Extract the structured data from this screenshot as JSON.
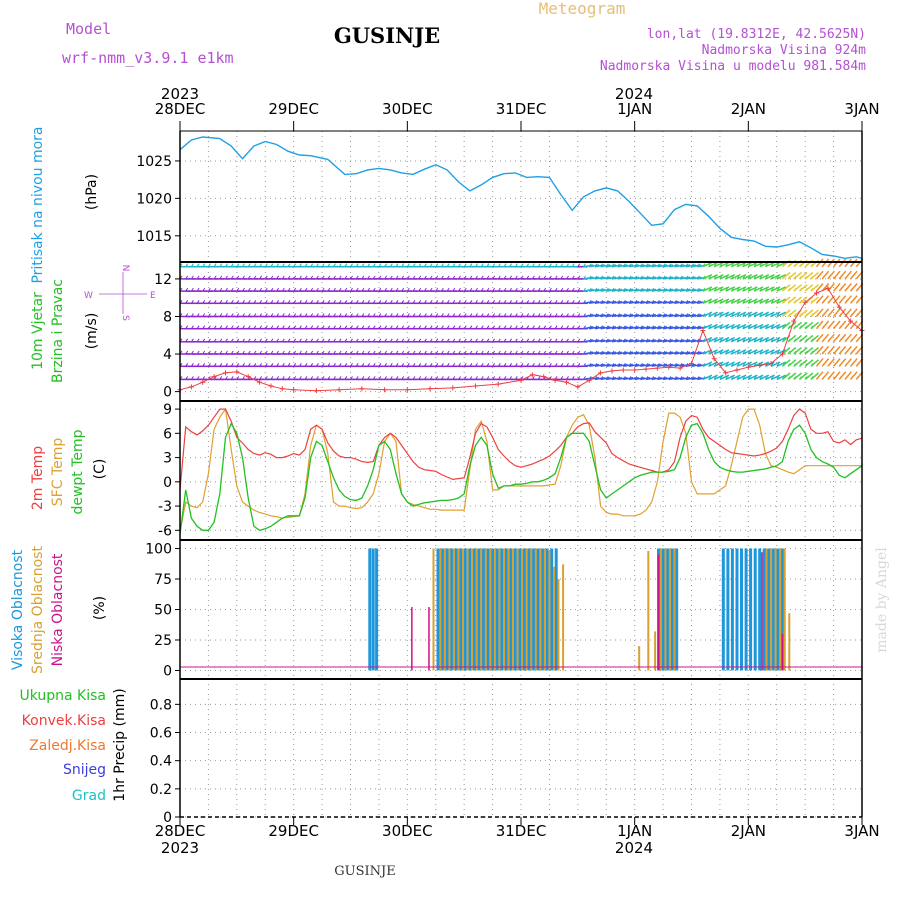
{
  "header": {
    "model_label": "Model",
    "model_name": "wrf-nmm_v3.9.1  e1km",
    "title": "GUSINJE",
    "meteogram": "Meteogram",
    "lonlat": "lon,lat (19.8312E, 42.5625N)",
    "altitude": "Nadmorska Visina 924m",
    "model_altitude": "Nadmorska Visina u modelu 981.584m",
    "footer_title": "GUSINJE",
    "watermark": "made by Angel"
  },
  "colors": {
    "pressure": "#1ea0e6",
    "temp2m": "#ee4040",
    "sfc_temp": "#e0a030",
    "dewpoint": "#22c022",
    "high_cloud": "#1e96dc",
    "mid_cloud": "#d8a030",
    "low_cloud": "#c8148c",
    "header_purple": "#b450d2",
    "meteogram_gold": "#e6be78"
  },
  "time_axis": {
    "top_year_left": "2023",
    "top_year_mid": "2024",
    "bottom_year_left": "2023",
    "bottom_year_mid": "2024",
    "ticks": [
      "28DEC",
      "29DEC",
      "30DEC",
      "31DEC",
      "1JAN",
      "2JAN",
      "3JAN"
    ]
  },
  "chart_data": [
    {
      "type": "line",
      "panel": "pressure",
      "ylabel_left": "Pritisak na nivou mora",
      "ylabel_unit": "(hPa)",
      "yticks": [
        "1015",
        "1020",
        "1025"
      ],
      "ylim": [
        1011.5,
        1029.0
      ],
      "x_days": [
        0,
        0.1,
        0.2,
        0.35,
        0.45,
        0.55,
        0.65,
        0.75,
        0.85,
        0.95,
        1.05,
        1.15,
        1.3,
        1.45,
        1.55,
        1.65,
        1.75,
        1.85,
        1.95,
        2.05,
        2.15,
        2.25,
        2.35,
        2.45,
        2.55,
        2.65,
        2.75,
        2.85,
        2.95,
        3.05,
        3.15,
        3.25,
        3.35,
        3.45,
        3.55,
        3.65,
        3.75,
        3.85,
        3.95,
        4.05,
        4.15,
        4.25,
        4.35,
        4.45,
        4.55,
        4.65,
        4.75,
        4.85,
        4.95,
        5.05,
        5.15,
        5.25,
        5.35,
        5.45,
        5.55,
        5.65,
        5.75,
        5.85,
        5.95,
        6.0
      ],
      "values": [
        1026.5,
        1027.8,
        1028.2,
        1028.0,
        1027.0,
        1025.3,
        1027.0,
        1027.6,
        1027.2,
        1026.3,
        1025.8,
        1025.7,
        1025.2,
        1023.2,
        1023.3,
        1023.8,
        1024.0,
        1023.8,
        1023.4,
        1023.2,
        1023.9,
        1024.5,
        1023.8,
        1022.2,
        1021.0,
        1021.8,
        1022.8,
        1023.3,
        1023.4,
        1022.8,
        1022.9,
        1022.8,
        1020.5,
        1018.4,
        1020.2,
        1021.0,
        1021.4,
        1021.0,
        1019.6,
        1018.0,
        1016.4,
        1016.6,
        1018.5,
        1019.2,
        1019.0,
        1017.6,
        1016.0,
        1014.8,
        1014.5,
        1014.3,
        1013.6,
        1013.5,
        1013.8,
        1014.2,
        1013.4,
        1012.5,
        1012.3,
        1012.0,
        1012.2,
        1012.0
      ]
    },
    {
      "type": "line",
      "panel": "wind",
      "ylabel_left": [
        "10m Vjetar",
        "Brzina i Pravac"
      ],
      "ylabel_unit": "(m/s)",
      "compass": {
        "n": "N",
        "w": "W",
        "e": "E",
        "s": "S"
      },
      "yticks": [
        "0",
        "4",
        "8",
        "12"
      ],
      "ylim": [
        -1.0,
        13.8
      ],
      "series": [
        {
          "name": "wind_speed",
          "x_days": [
            0,
            0.1,
            0.2,
            0.3,
            0.4,
            0.5,
            0.6,
            0.7,
            0.8,
            0.9,
            1.0,
            1.2,
            1.4,
            1.6,
            1.8,
            2.0,
            2.2,
            2.4,
            2.6,
            2.8,
            3.0,
            3.1,
            3.2,
            3.3,
            3.4,
            3.5,
            3.6,
            3.7,
            3.8,
            3.9,
            4.0,
            4.1,
            4.2,
            4.3,
            4.4,
            4.5,
            4.6,
            4.7,
            4.8,
            4.9,
            5.0,
            5.1,
            5.2,
            5.3,
            5.4,
            5.5,
            5.6,
            5.7,
            5.8,
            5.9,
            6.0
          ],
          "values": [
            0.2,
            0.5,
            1.0,
            1.6,
            2.0,
            2.1,
            1.6,
            1.0,
            0.6,
            0.3,
            0.2,
            0.1,
            0.2,
            0.3,
            0.2,
            0.2,
            0.3,
            0.4,
            0.6,
            0.8,
            1.2,
            1.8,
            1.6,
            1.2,
            1.0,
            0.5,
            1.2,
            2.0,
            2.2,
            2.3,
            2.3,
            2.4,
            2.5,
            2.6,
            2.5,
            3.0,
            6.5,
            3.5,
            2.0,
            2.3,
            2.6,
            2.8,
            3.0,
            4.0,
            7.5,
            9.5,
            10.5,
            11.0,
            9.0,
            7.5,
            6.5
          ]
        }
      ]
    },
    {
      "type": "line",
      "panel": "temperature",
      "ylabel_left": [
        "2m Temp",
        "SFC Temp",
        "dewpt Temp"
      ],
      "ylabel_unit": "(C)",
      "yticks": [
        "-6",
        "-3",
        "0",
        "3",
        "6",
        "9"
      ],
      "ylim": [
        -7.2,
        10.0
      ],
      "x_days": [
        0,
        0.05,
        0.1,
        0.15,
        0.2,
        0.25,
        0.3,
        0.35,
        0.4,
        0.45,
        0.5,
        0.55,
        0.6,
        0.65,
        0.7,
        0.75,
        0.8,
        0.85,
        0.9,
        0.95,
        1.0,
        1.05,
        1.1,
        1.15,
        1.2,
        1.25,
        1.3,
        1.35,
        1.4,
        1.45,
        1.5,
        1.55,
        1.6,
        1.65,
        1.7,
        1.75,
        1.8,
        1.85,
        1.9,
        1.95,
        2.0,
        2.05,
        2.1,
        2.15,
        2.2,
        2.25,
        2.3,
        2.35,
        2.4,
        2.45,
        2.5,
        2.55,
        2.6,
        2.65,
        2.7,
        2.75,
        2.8,
        2.85,
        2.9,
        2.95,
        3.0,
        3.05,
        3.1,
        3.15,
        3.2,
        3.25,
        3.3,
        3.35,
        3.4,
        3.45,
        3.5,
        3.55,
        3.6,
        3.65,
        3.7,
        3.75,
        3.8,
        3.85,
        3.9,
        3.95,
        4.0,
        4.05,
        4.1,
        4.15,
        4.2,
        4.25,
        4.3,
        4.35,
        4.4,
        4.45,
        4.5,
        4.55,
        4.6,
        4.65,
        4.7,
        4.75,
        4.8,
        4.85,
        4.9,
        4.95,
        5.0,
        5.05,
        5.1,
        5.15,
        5.2,
        5.25,
        5.3,
        5.35,
        5.4,
        5.45,
        5.5,
        5.55,
        5.6,
        5.65,
        5.7,
        5.75,
        5.8,
        5.85,
        5.9,
        5.95,
        6.0
      ],
      "series": [
        {
          "name": "2m Temp",
          "values": [
            -1.0,
            6.8,
            6.2,
            5.8,
            6.3,
            7.0,
            8.0,
            9.0,
            9.0,
            7.5,
            5.5,
            4.8,
            4.0,
            3.5,
            3.3,
            3.6,
            3.4,
            3.0,
            3.0,
            3.2,
            3.5,
            3.3,
            4.0,
            6.5,
            7.0,
            6.5,
            4.8,
            3.8,
            3.2,
            3.0,
            3.0,
            2.8,
            2.5,
            2.4,
            2.5,
            4.5,
            5.5,
            6.0,
            5.5,
            4.5,
            3.5,
            2.5,
            1.8,
            1.5,
            1.4,
            1.3,
            0.9,
            0.6,
            0.3,
            0.4,
            0.5,
            3.0,
            6.0,
            7.2,
            6.8,
            5.5,
            4.0,
            3.2,
            2.5,
            2.0,
            1.8,
            2.0,
            2.2,
            2.5,
            2.8,
            3.2,
            3.8,
            4.5,
            5.5,
            6.0,
            6.8,
            7.2,
            7.3,
            6.2,
            5.5,
            4.8,
            3.5,
            3.0,
            2.6,
            2.2,
            2.0,
            1.8,
            1.6,
            1.4,
            1.2,
            1.2,
            1.5,
            2.5,
            5.5,
            7.5,
            8.2,
            8.0,
            6.5,
            5.5,
            5.0,
            4.5,
            4.0,
            3.6,
            3.5,
            3.4,
            3.3,
            3.2,
            3.3,
            3.5,
            3.8,
            4.2,
            5.0,
            6.5,
            8.2,
            9.0,
            8.5,
            6.5,
            6.0,
            6.0,
            6.2,
            5.0,
            4.8,
            5.2,
            4.6,
            5.2,
            5.4
          ]
        },
        {
          "name": "SFC Temp",
          "values": [
            -6.2,
            -2.5,
            -3.0,
            -3.2,
            -2.5,
            1.0,
            6.5,
            8.0,
            9.0,
            4.0,
            -0.5,
            -2.5,
            -3.0,
            -3.5,
            -3.8,
            -4.0,
            -4.2,
            -4.3,
            -4.5,
            -4.4,
            -4.3,
            -4.2,
            -1.5,
            4.5,
            7.0,
            6.5,
            3.5,
            -2.5,
            -3.0,
            -3.0,
            -3.2,
            -3.3,
            -3.2,
            -2.5,
            -1.5,
            1.0,
            5.0,
            6.0,
            5.0,
            -1.5,
            -2.5,
            -2.8,
            -3.0,
            -3.2,
            -3.4,
            -3.4,
            -3.5,
            -3.5,
            -3.5,
            -3.5,
            -3.5,
            1.5,
            6.5,
            7.5,
            5.0,
            -1.0,
            -1.0,
            -0.5,
            -0.5,
            -0.5,
            -0.5,
            -0.5,
            -0.5,
            -0.5,
            -0.5,
            -0.4,
            -0.3,
            2.0,
            5.5,
            7.0,
            8.0,
            8.3,
            7.0,
            3.0,
            -3.0,
            -3.8,
            -4.0,
            -4.0,
            -4.2,
            -4.2,
            -4.2,
            -4.0,
            -3.5,
            -2.5,
            0.0,
            5.0,
            8.5,
            8.5,
            8.0,
            6.0,
            0.0,
            -1.5,
            -1.5,
            -1.5,
            -1.5,
            -1.0,
            -0.5,
            2.0,
            5.0,
            8.0,
            9.0,
            9.0,
            7.0,
            3.5,
            2.0,
            1.8,
            1.5,
            1.2,
            1.0,
            1.5,
            2.0,
            2.0,
            2.0,
            2.0,
            2.0,
            2.0,
            2.0,
            2.0,
            2.0,
            2.0,
            2.0
          ]
        },
        {
          "name": "dewpt Temp",
          "values": [
            -6.5,
            -1.0,
            -4.5,
            -5.5,
            -6.0,
            -6.0,
            -5.0,
            -1.5,
            5.5,
            7.2,
            6.0,
            3.0,
            -2.0,
            -5.5,
            -6.0,
            -5.8,
            -5.5,
            -5.0,
            -4.5,
            -4.2,
            -4.2,
            -4.2,
            -2.0,
            3.0,
            5.0,
            4.5,
            2.5,
            0.5,
            -1.0,
            -1.8,
            -2.2,
            -2.3,
            -2.0,
            -0.5,
            1.5,
            4.5,
            5.0,
            4.0,
            1.0,
            -1.5,
            -2.5,
            -3.0,
            -2.8,
            -2.6,
            -2.5,
            -2.4,
            -2.3,
            -2.3,
            -2.2,
            -2.0,
            -1.5,
            2.0,
            4.5,
            5.5,
            4.5,
            1.0,
            -0.8,
            -0.5,
            -0.5,
            -0.3,
            -0.3,
            -0.2,
            0.0,
            0.0,
            0.2,
            0.5,
            1.0,
            3.0,
            5.5,
            6.0,
            6.0,
            6.0,
            5.0,
            2.0,
            -1.0,
            -2.0,
            -1.5,
            -1.0,
            -0.5,
            0.0,
            0.5,
            0.8,
            1.0,
            1.2,
            1.2,
            1.2,
            1.3,
            1.5,
            3.0,
            5.5,
            7.0,
            7.2,
            6.0,
            4.0,
            2.5,
            1.8,
            1.5,
            1.3,
            1.2,
            1.2,
            1.3,
            1.4,
            1.5,
            1.6,
            1.8,
            2.0,
            2.5,
            5.0,
            6.5,
            7.0,
            6.0,
            4.0,
            3.0,
            2.5,
            2.2,
            1.8,
            0.8,
            0.5,
            1.0,
            1.5,
            2.0
          ]
        }
      ]
    },
    {
      "type": "bar",
      "panel": "cloud_cover",
      "ylabel_left": [
        "Visoka Oblacnost",
        "Srednja Oblacnost",
        "Niska Oblacnost"
      ],
      "ylabel_unit": "(%)",
      "yticks": [
        "0",
        "25",
        "50",
        "75",
        "100"
      ],
      "ylim": [
        -7,
        107
      ],
      "series": [
        {
          "name": "Visoka Oblacnost",
          "x_days": [
            1.67,
            1.7,
            1.73,
            2.27,
            2.31,
            2.35,
            2.39,
            2.43,
            2.47,
            2.51,
            2.55,
            2.59,
            2.63,
            2.67,
            2.71,
            2.75,
            2.79,
            2.83,
            2.87,
            2.91,
            2.95,
            2.99,
            3.03,
            3.07,
            3.11,
            3.15,
            3.19,
            3.23,
            3.27,
            3.31,
            4.21,
            4.25,
            4.29,
            4.33,
            4.37,
            4.78,
            4.82,
            4.86,
            4.9,
            4.94,
            4.98,
            5.02,
            5.06,
            5.1,
            5.14,
            5.18,
            5.22,
            5.26,
            5.3
          ],
          "values": [
            100,
            100,
            100,
            100,
            100,
            100,
            100,
            100,
            100,
            100,
            100,
            100,
            100,
            100,
            100,
            100,
            100,
            100,
            100,
            100,
            100,
            100,
            100,
            100,
            100,
            100,
            100,
            100,
            100,
            100,
            100,
            100,
            100,
            100,
            100,
            100,
            100,
            100,
            100,
            100,
            100,
            100,
            100,
            100,
            100,
            100,
            100,
            100,
            100
          ]
        },
        {
          "name": "Srednja Oblacnost",
          "x_days": [
            2.23,
            2.29,
            2.33,
            2.37,
            2.41,
            2.45,
            2.49,
            2.53,
            2.57,
            2.61,
            2.65,
            2.69,
            2.73,
            2.77,
            2.81,
            2.85,
            2.89,
            2.93,
            2.97,
            3.01,
            3.05,
            3.09,
            3.13,
            3.17,
            3.21,
            3.25,
            3.29,
            3.33,
            3.37,
            4.04,
            4.12,
            4.18,
            4.23,
            4.27,
            4.31,
            4.35,
            5.16,
            5.2,
            5.24,
            5.28,
            5.32,
            5.36
          ],
          "values": [
            100,
            100,
            100,
            100,
            100,
            100,
            100,
            100,
            100,
            100,
            100,
            100,
            100,
            100,
            100,
            100,
            100,
            100,
            100,
            100,
            100,
            100,
            100,
            100,
            100,
            98,
            85,
            75,
            87,
            20,
            98,
            32,
            100,
            100,
            100,
            100,
            100,
            100,
            100,
            100,
            100,
            47
          ]
        },
        {
          "name": "Niska Oblacnost",
          "x_days": [
            2.04,
            2.19,
            4.21,
            5.12,
            5.3
          ],
          "values": [
            52,
            52,
            95,
            97,
            30
          ]
        }
      ]
    },
    {
      "type": "line",
      "panel": "precipitation",
      "legend_left": [
        "Ukupna Kisa",
        "Konvek.Kisa",
        "Zaledj.Kisa",
        "Snijeg",
        "Grad"
      ],
      "legend_colors": [
        "#22c022",
        "#ee4040",
        "#f07830",
        "#3c3cdc",
        "#20c0c0"
      ],
      "ylabel": "1hr Precip (mm)",
      "yticks": [
        "0",
        "0.2",
        "0.4",
        "0.6",
        "0.8"
      ],
      "ylim": [
        0,
        0.98
      ],
      "values": []
    }
  ]
}
